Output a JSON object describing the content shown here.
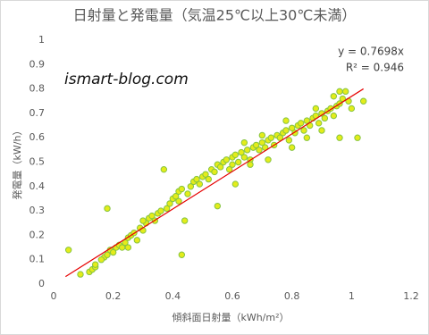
{
  "chart_data": {
    "type": "scatter",
    "title": "日射量と発電量（気温25℃以上30℃未満）",
    "x_label": "傾斜面日射量（kWh/m²）",
    "y_label": "発電量（kW/h）",
    "watermark": "ismart-blog.com",
    "xlim": [
      0,
      1.2
    ],
    "ylim": [
      0,
      1
    ],
    "xticks": [
      0,
      0.2,
      0.4,
      0.6,
      0.8,
      1,
      1.2
    ],
    "yticks": [
      0,
      0.1,
      0.2,
      0.3,
      0.4,
      0.5,
      0.6,
      0.7,
      0.8,
      0.9,
      1
    ],
    "series": [
      {
        "color": "#e4ec1a",
        "edge_color": "#86c440",
        "x": [
          0.05,
          0.18,
          0.37,
          0.43,
          0.44,
          0.55,
          0.61,
          1.02,
          1.04,
          0.42,
          0.09,
          0.12,
          0.13,
          0.14,
          0.14,
          0.17,
          0.18,
          0.19,
          0.2,
          0.21,
          0.22,
          0.23,
          0.24,
          0.25,
          0.26,
          0.27,
          0.28,
          0.29,
          0.3,
          0.31,
          0.32,
          0.33,
          0.34,
          0.35,
          0.36,
          0.38,
          0.39,
          0.4,
          0.41,
          0.42,
          0.43,
          0.45,
          0.46,
          0.47,
          0.48,
          0.49,
          0.5,
          0.51,
          0.52,
          0.53,
          0.54,
          0.55,
          0.56,
          0.57,
          0.58,
          0.59,
          0.6,
          0.61,
          0.62,
          0.63,
          0.64,
          0.65,
          0.66,
          0.67,
          0.68,
          0.69,
          0.7,
          0.71,
          0.72,
          0.73,
          0.74,
          0.75,
          0.76,
          0.77,
          0.78,
          0.79,
          0.8,
          0.81,
          0.82,
          0.83,
          0.84,
          0.85,
          0.86,
          0.87,
          0.88,
          0.89,
          0.9,
          0.91,
          0.92,
          0.93,
          0.94,
          0.95,
          0.96,
          0.97,
          0.98,
          0.99,
          1.0,
          0.96,
          0.9,
          0.85,
          0.8,
          0.72,
          0.66,
          0.6,
          0.64,
          0.7,
          0.78,
          0.88,
          0.94,
          0.96,
          0.3,
          0.16,
          0.25
        ],
        "values": [
          0.14,
          0.31,
          0.47,
          0.12,
          0.26,
          0.32,
          0.41,
          0.6,
          0.75,
          0.34,
          0.04,
          0.05,
          0.06,
          0.07,
          0.08,
          0.11,
          0.12,
          0.14,
          0.13,
          0.15,
          0.16,
          0.15,
          0.17,
          0.19,
          0.2,
          0.21,
          0.18,
          0.23,
          0.22,
          0.25,
          0.27,
          0.28,
          0.26,
          0.29,
          0.3,
          0.31,
          0.33,
          0.35,
          0.36,
          0.38,
          0.39,
          0.37,
          0.4,
          0.42,
          0.43,
          0.41,
          0.44,
          0.45,
          0.43,
          0.47,
          0.46,
          0.49,
          0.48,
          0.5,
          0.51,
          0.47,
          0.52,
          0.53,
          0.5,
          0.54,
          0.52,
          0.55,
          0.51,
          0.56,
          0.57,
          0.55,
          0.58,
          0.56,
          0.59,
          0.6,
          0.57,
          0.61,
          0.6,
          0.62,
          0.63,
          0.59,
          0.64,
          0.62,
          0.65,
          0.66,
          0.63,
          0.67,
          0.65,
          0.68,
          0.69,
          0.66,
          0.7,
          0.68,
          0.71,
          0.72,
          0.69,
          0.73,
          0.74,
          0.76,
          0.79,
          0.75,
          0.72,
          0.6,
          0.63,
          0.6,
          0.56,
          0.51,
          0.49,
          0.49,
          0.58,
          0.61,
          0.67,
          0.72,
          0.77,
          0.79,
          0.26,
          0.1,
          0.15
        ]
      }
    ],
    "trendline": {
      "equation": "y = 0.7698x",
      "r2_label": "R² = 0.946",
      "slope": 0.7698,
      "x_start": 0.04,
      "x_end": 1.04,
      "color": "#e60000"
    }
  }
}
